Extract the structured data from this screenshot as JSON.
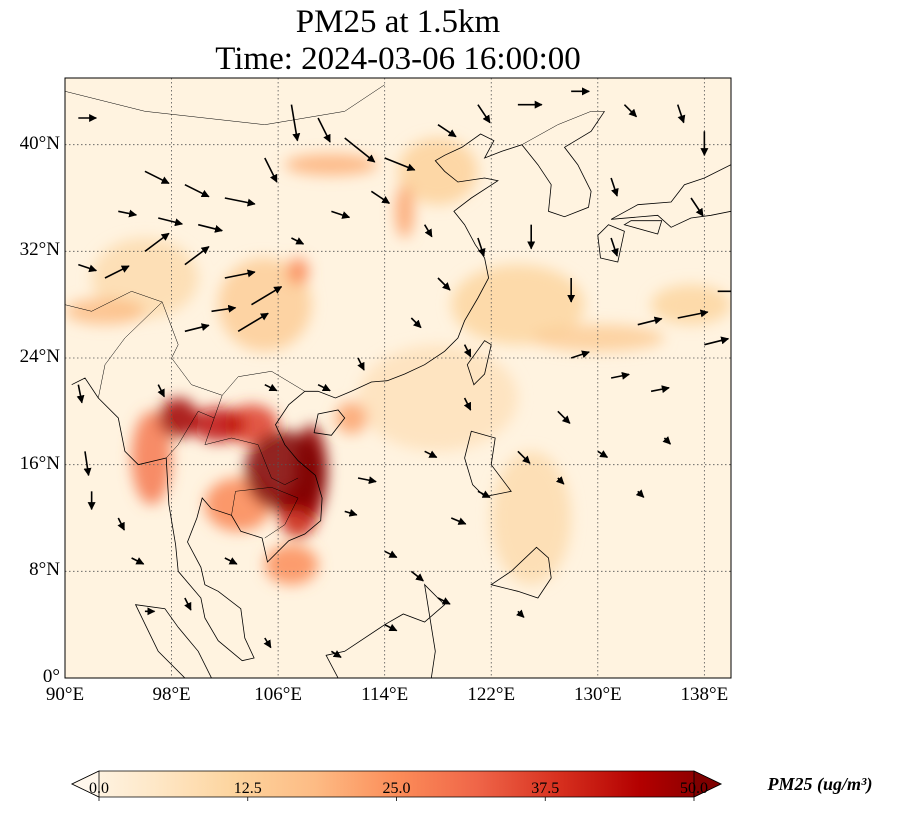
{
  "title": {
    "line1": "PM25 at 1.5km",
    "line2": "Time: 2024-03-06 16:00:00"
  },
  "map": {
    "extent": {
      "lon": [
        90,
        140
      ],
      "lat": [
        0,
        45
      ]
    },
    "lat_ticks": [
      {
        "value": 40,
        "label": "40°N"
      },
      {
        "value": 32,
        "label": "32°N"
      },
      {
        "value": 24,
        "label": "24°N"
      },
      {
        "value": 16,
        "label": "16°N"
      },
      {
        "value": 8,
        "label": "8°N"
      },
      {
        "value": 0,
        "label": "0°"
      }
    ],
    "lon_ticks": [
      {
        "value": 90,
        "label": "90°E"
      },
      {
        "value": 98,
        "label": "98°E"
      },
      {
        "value": 106,
        "label": "106°E"
      },
      {
        "value": 114,
        "label": "114°E"
      },
      {
        "value": 122,
        "label": "122°E"
      },
      {
        "value": 130,
        "label": "130°E"
      },
      {
        "value": 138,
        "label": "138°E"
      }
    ],
    "gridlines": "dotted",
    "colormap": "OrRd",
    "colors": {
      "low": "#fff7ec",
      "mid": "#fc8d59",
      "high": "#7f0000",
      "coast": "#000000",
      "arrow": "#000000"
    },
    "hotspots": [
      {
        "lon": 106.5,
        "lat": 15.5,
        "pm25": 50,
        "sx": 3.0,
        "sy": 3.0
      },
      {
        "lon": 108.5,
        "lat": 15.5,
        "pm25": 48,
        "sx": 1.2,
        "sy": 3.5
      },
      {
        "lon": 107.5,
        "lat": 12.5,
        "pm25": 40,
        "sx": 1.5,
        "sy": 2.0
      },
      {
        "lon": 98.5,
        "lat": 19.5,
        "pm25": 46,
        "sx": 1.5,
        "sy": 1.5
      },
      {
        "lon": 101.5,
        "lat": 19.0,
        "pm25": 42,
        "sx": 2.0,
        "sy": 1.3
      },
      {
        "lon": 104.0,
        "lat": 19.0,
        "pm25": 36,
        "sx": 2.0,
        "sy": 1.5
      },
      {
        "lon": 96.5,
        "lat": 16.5,
        "pm25": 28,
        "sx": 1.5,
        "sy": 3.5
      },
      {
        "lon": 103.0,
        "lat": 13.0,
        "pm25": 26,
        "sx": 2.5,
        "sy": 2.0
      },
      {
        "lon": 107.0,
        "lat": 8.5,
        "pm25": 25,
        "sx": 2.0,
        "sy": 1.5
      },
      {
        "lon": 111.5,
        "lat": 19.5,
        "pm25": 22,
        "sx": 1.2,
        "sy": 1.2
      },
      {
        "lon": 107.5,
        "lat": 30.5,
        "pm25": 26,
        "sx": 0.8,
        "sy": 1.0
      },
      {
        "lon": 110.0,
        "lat": 38.5,
        "pm25": 20,
        "sx": 3.5,
        "sy": 0.8
      },
      {
        "lon": 115.5,
        "lat": 35.0,
        "pm25": 22,
        "sx": 0.7,
        "sy": 2.0
      },
      {
        "lon": 93.0,
        "lat": 27.5,
        "pm25": 18,
        "sx": 3.0,
        "sy": 1.0
      },
      {
        "lon": 105.0,
        "lat": 28.0,
        "pm25": 14,
        "sx": 3.5,
        "sy": 3.5
      },
      {
        "lon": 118.0,
        "lat": 38.0,
        "pm25": 13,
        "sx": 3.0,
        "sy": 2.5
      },
      {
        "lon": 130.0,
        "lat": 25.5,
        "pm25": 14,
        "sx": 5.0,
        "sy": 1.0
      },
      {
        "lon": 124.0,
        "lat": 28.0,
        "pm25": 12,
        "sx": 5.0,
        "sy": 3.0
      },
      {
        "lon": 96.0,
        "lat": 30.0,
        "pm25": 10,
        "sx": 4.0,
        "sy": 3.0
      },
      {
        "lon": 125.0,
        "lat": 12.0,
        "pm25": 10,
        "sx": 3.0,
        "sy": 5.0
      },
      {
        "lon": 118.0,
        "lat": 21.0,
        "pm25": 8,
        "sx": 6.0,
        "sy": 4.0
      },
      {
        "lon": 137.0,
        "lat": 28.0,
        "pm25": 12,
        "sx": 3.0,
        "sy": 1.5
      }
    ],
    "wind_vectors": [
      [
        91,
        42,
        1.5,
        0
      ],
      [
        94,
        35,
        1.5,
        -0.3
      ],
      [
        97,
        34.5,
        2,
        -0.5
      ],
      [
        100,
        34,
        2,
        -0.5
      ],
      [
        96,
        38,
        2,
        -1
      ],
      [
        99,
        37,
        2,
        -1
      ],
      [
        102,
        36,
        2.5,
        -0.5
      ],
      [
        105,
        39,
        1,
        -2
      ],
      [
        107,
        43,
        0.5,
        -3
      ],
      [
        109,
        42,
        1,
        -2
      ],
      [
        111,
        40.5,
        2.5,
        -2
      ],
      [
        114,
        39,
        2.5,
        -1
      ],
      [
        118,
        41.5,
        1.5,
        -1
      ],
      [
        121,
        43,
        1,
        -1.5
      ],
      [
        124,
        43,
        2,
        0
      ],
      [
        128,
        44,
        1.5,
        0
      ],
      [
        132,
        43,
        1,
        -1
      ],
      [
        136,
        43,
        0.5,
        -1.5
      ],
      [
        138,
        41,
        0,
        -2
      ],
      [
        91,
        31,
        1.5,
        -0.5
      ],
      [
        93,
        30,
        2,
        1
      ],
      [
        96,
        32,
        2,
        1.5
      ],
      [
        99,
        31,
        2,
        1.5
      ],
      [
        102,
        30,
        2.5,
        0.5
      ],
      [
        101,
        27.5,
        2,
        0.3
      ],
      [
        103,
        26,
        2.5,
        1.5
      ],
      [
        104,
        28,
        2.5,
        1.5
      ],
      [
        99,
        26,
        2,
        0.5
      ],
      [
        110,
        35,
        1.5,
        -0.5
      ],
      [
        113,
        36.5,
        1.5,
        -1
      ],
      [
        118,
        30,
        1,
        -1
      ],
      [
        121,
        33,
        0.5,
        -1.5
      ],
      [
        125,
        34,
        0,
        -2
      ],
      [
        128,
        30,
        0,
        -2
      ],
      [
        131,
        33,
        0.5,
        -1.5
      ],
      [
        133,
        26.5,
        2,
        0.5
      ],
      [
        136,
        27,
        2.5,
        0.5
      ],
      [
        138,
        25,
        2,
        0.5
      ],
      [
        139,
        29,
        2.5,
        0
      ],
      [
        134,
        21.5,
        1.5,
        0.3
      ],
      [
        131,
        22.5,
        1.5,
        0.3
      ],
      [
        128,
        24,
        1.5,
        0.5
      ],
      [
        127,
        20,
        1,
        -1
      ],
      [
        124,
        17,
        1,
        -1
      ],
      [
        120,
        21,
        0.5,
        -1
      ],
      [
        121,
        14,
        1,
        -0.5
      ],
      [
        119,
        12,
        1.2,
        -0.5
      ],
      [
        116,
        8,
        1,
        -0.8
      ],
      [
        114,
        9.5,
        1,
        -0.5
      ],
      [
        111,
        12.5,
        1,
        -0.3
      ],
      [
        112,
        15,
        1.5,
        -0.3
      ],
      [
        117,
        17,
        1,
        -0.5
      ],
      [
        91.5,
        17,
        0.3,
        -2
      ],
      [
        92,
        14,
        0,
        -1.5
      ],
      [
        94,
        12,
        0.5,
        -1
      ],
      [
        95,
        9,
        1,
        -0.5
      ],
      [
        96,
        5,
        0.8,
        0
      ],
      [
        99,
        6,
        0.5,
        -1
      ],
      [
        102,
        9,
        1,
        -0.5
      ],
      [
        105,
        3,
        0.5,
        -0.8
      ],
      [
        110,
        2,
        0.8,
        -0.5
      ],
      [
        114,
        4,
        1,
        -0.5
      ],
      [
        118,
        6,
        1,
        -0.5
      ],
      [
        124,
        5,
        0.5,
        -0.5
      ],
      [
        112,
        24,
        0.5,
        -1
      ],
      [
        109,
        22,
        1,
        -0.5
      ],
      [
        105,
        22,
        1,
        -0.5
      ],
      [
        97,
        22,
        0.5,
        -1
      ],
      [
        91,
        22,
        0.3,
        -1.5
      ],
      [
        120,
        25,
        0.5,
        -1
      ],
      [
        116,
        27,
        0.8,
        -0.8
      ],
      [
        107,
        33,
        1,
        -0.5
      ],
      [
        117,
        34,
        0.6,
        -1
      ],
      [
        130,
        17,
        0.8,
        -0.5
      ],
      [
        135,
        18,
        0.5,
        -0.5
      ],
      [
        133,
        14,
        0.5,
        -0.5
      ],
      [
        127,
        15,
        0.5,
        -0.5
      ],
      [
        131,
        37.5,
        0.5,
        -1.5
      ],
      [
        137,
        36,
        1,
        -1.5
      ]
    ],
    "coastline": [
      [
        108.0,
        21.5
      ],
      [
        109.0,
        21.5
      ],
      [
        110.3,
        21.0
      ],
      [
        111.5,
        21.5
      ],
      [
        113.0,
        22.2
      ],
      [
        114.2,
        22.3
      ],
      [
        115.5,
        22.8
      ],
      [
        117.0,
        23.5
      ],
      [
        118.5,
        24.5
      ],
      [
        119.5,
        25.5
      ],
      [
        120.0,
        26.8
      ],
      [
        121.0,
        28.5
      ],
      [
        121.8,
        30.0
      ],
      [
        121.5,
        31.5
      ],
      [
        120.8,
        32.5
      ],
      [
        120.0,
        34.0
      ],
      [
        119.2,
        35.0
      ],
      [
        120.5,
        36.0
      ],
      [
        122.5,
        37.3
      ],
      [
        121.5,
        37.5
      ],
      [
        119.5,
        37.2
      ],
      [
        118.5,
        38.0
      ],
      [
        117.8,
        38.8
      ],
      [
        118.5,
        39.2
      ],
      [
        119.8,
        39.8
      ],
      [
        121.2,
        40.8
      ],
      [
        122.2,
        40.3
      ],
      [
        121.5,
        39.0
      ],
      [
        122.8,
        39.5
      ],
      [
        124.3,
        40.0
      ],
      [
        125.5,
        38.5
      ],
      [
        126.5,
        37.0
      ],
      [
        126.3,
        35.0
      ],
      [
        127.5,
        34.6
      ],
      [
        129.3,
        35.3
      ],
      [
        129.5,
        36.5
      ],
      [
        128.5,
        38.5
      ],
      [
        127.5,
        39.8
      ],
      [
        129.5,
        41.0
      ],
      [
        130.5,
        42.5
      ]
    ],
    "indochina_coast": [
      [
        108.0,
        21.5
      ],
      [
        106.8,
        20.5
      ],
      [
        105.8,
        19.0
      ],
      [
        106.5,
        17.5
      ],
      [
        107.5,
        16.3
      ],
      [
        108.8,
        15.2
      ],
      [
        109.3,
        13.5
      ],
      [
        109.2,
        11.8
      ],
      [
        108.0,
        10.8
      ],
      [
        106.8,
        10.3
      ],
      [
        105.2,
        8.7
      ],
      [
        104.8,
        10.5
      ],
      [
        103.2,
        11.0
      ],
      [
        102.5,
        12.2
      ],
      [
        101.0,
        12.7
      ],
      [
        100.3,
        13.5
      ],
      [
        99.9,
        12.0
      ],
      [
        99.2,
        10.2
      ],
      [
        100.2,
        8.3
      ],
      [
        100.5,
        7.0
      ],
      [
        101.5,
        6.5
      ],
      [
        103.2,
        5.2
      ],
      [
        103.5,
        3.0
      ],
      [
        104.2,
        1.5
      ],
      [
        103.3,
        1.3
      ],
      [
        101.5,
        2.8
      ],
      [
        100.5,
        4.5
      ],
      [
        100.2,
        6.0
      ],
      [
        98.5,
        8.0
      ],
      [
        98.3,
        10.0
      ],
      [
        97.8,
        13.0
      ],
      [
        97.6,
        16.5
      ],
      [
        95.5,
        16.0
      ],
      [
        94.5,
        17.0
      ],
      [
        94.0,
        19.5
      ],
      [
        92.5,
        21.0
      ],
      [
        91.5,
        22.5
      ],
      [
        90.5,
        22.0
      ]
    ],
    "islands": [
      [
        [
          120.7,
          22.0
        ],
        [
          121.5,
          22.8
        ],
        [
          122.0,
          25.0
        ],
        [
          121.5,
          25.3
        ],
        [
          120.2,
          23.5
        ],
        [
          120.7,
          22.0
        ]
      ],
      [
        [
          108.7,
          18.4
        ],
        [
          110.0,
          18.2
        ],
        [
          111.0,
          19.5
        ],
        [
          110.5,
          20.1
        ],
        [
          109.0,
          19.8
        ],
        [
          108.7,
          18.4
        ]
      ],
      [
        [
          120.5,
          18.5
        ],
        [
          122.3,
          18.0
        ],
        [
          122.0,
          16.0
        ],
        [
          123.5,
          14.0
        ],
        [
          121.5,
          13.6
        ],
        [
          120.6,
          14.5
        ],
        [
          120.0,
          16.5
        ],
        [
          120.5,
          18.5
        ]
      ],
      [
        [
          125.4,
          9.8
        ],
        [
          126.3,
          9.0
        ],
        [
          126.5,
          7.5
        ],
        [
          125.5,
          6.0
        ],
        [
          124.0,
          6.5
        ],
        [
          122.0,
          7.0
        ],
        [
          123.5,
          8.0
        ],
        [
          125.4,
          9.8
        ]
      ],
      [
        [
          117.0,
          7.0
        ],
        [
          118.5,
          5.5
        ],
        [
          117.0,
          4.2
        ],
        [
          115.4,
          4.8
        ],
        [
          114.0,
          4.0
        ],
        [
          111.0,
          2.0
        ],
        [
          109.6,
          1.7
        ],
        [
          110.5,
          0.0
        ],
        [
          117.5,
          0.0
        ],
        [
          117.8,
          2.0
        ],
        [
          117.0,
          7.0
        ]
      ],
      [
        [
          95.3,
          5.5
        ],
        [
          97.5,
          5.2
        ],
        [
          98.5,
          3.8
        ],
        [
          100.0,
          2.0
        ],
        [
          101.0,
          0.0
        ],
        [
          99.0,
          0.0
        ],
        [
          97.0,
          2.0
        ],
        [
          95.3,
          5.5
        ]
      ],
      [
        [
          130.2,
          31.5
        ],
        [
          131.5,
          31.2
        ],
        [
          132.0,
          33.5
        ],
        [
          130.8,
          34.0
        ],
        [
          130.0,
          33.2
        ],
        [
          130.2,
          31.5
        ]
      ],
      [
        [
          132.0,
          34.0
        ],
        [
          134.5,
          33.3
        ],
        [
          134.8,
          34.3
        ],
        [
          132.5,
          34.3
        ],
        [
          132.0,
          34.0
        ]
      ],
      [
        [
          131.0,
          34.4
        ],
        [
          133.0,
          35.5
        ],
        [
          135.5,
          35.7
        ],
        [
          136.5,
          37.0
        ],
        [
          138.0,
          37.5
        ],
        [
          140.0,
          38.5
        ],
        [
          140.0,
          35.0
        ],
        [
          138.5,
          34.7
        ],
        [
          137.0,
          34.5
        ],
        [
          135.5,
          33.8
        ],
        [
          134.5,
          34.7
        ],
        [
          131.0,
          34.4
        ]
      ]
    ],
    "borders": [
      [
        [
          97.3,
          28.2
        ],
        [
          98.5,
          25.0
        ],
        [
          98.0,
          24.0
        ],
        [
          99.5,
          22.0
        ],
        [
          101.8,
          21.2
        ],
        [
          103.0,
          22.6
        ],
        [
          105.5,
          23.0
        ],
        [
          108.0,
          21.5
        ]
      ],
      [
        [
          101.8,
          21.2
        ],
        [
          101.2,
          19.5
        ],
        [
          100.5,
          17.5
        ],
        [
          102.5,
          18.0
        ],
        [
          104.5,
          17.5
        ],
        [
          105.5,
          15.0
        ],
        [
          106.5,
          14.5
        ],
        [
          107.5,
          15.0
        ]
      ],
      [
        [
          97.6,
          16.5
        ],
        [
          98.5,
          17.5
        ],
        [
          100.0,
          20.0
        ],
        [
          101.2,
          19.5
        ]
      ],
      [
        [
          102.5,
          12.2
        ],
        [
          102.8,
          14.0
        ],
        [
          105.5,
          14.3
        ],
        [
          107.5,
          13.5
        ],
        [
          106.5,
          11.5
        ],
        [
          105.0,
          10.5
        ]
      ],
      [
        [
          90.0,
          28.0
        ],
        [
          92.0,
          27.5
        ],
        [
          95.0,
          29.0
        ],
        [
          97.3,
          28.2
        ]
      ],
      [
        [
          92.5,
          21.0
        ],
        [
          93.0,
          23.5
        ],
        [
          94.5,
          25.5
        ],
        [
          97.3,
          28.2
        ]
      ],
      [
        [
          90.0,
          44.0
        ],
        [
          96.0,
          42.5
        ],
        [
          105.0,
          41.5
        ],
        [
          111.0,
          42.5
        ],
        [
          114.0,
          44.5
        ]
      ],
      [
        [
          124.3,
          40.0
        ],
        [
          127.0,
          41.5
        ],
        [
          129.5,
          42.5
        ],
        [
          130.5,
          42.5
        ]
      ]
    ]
  },
  "colorbar": {
    "min": 0.0,
    "max": 50.0,
    "ticks": [
      "0.0",
      "12.5",
      "25.0",
      "37.5",
      "50.0"
    ],
    "label": "PM25 (ug/m³)",
    "extend": "both"
  }
}
